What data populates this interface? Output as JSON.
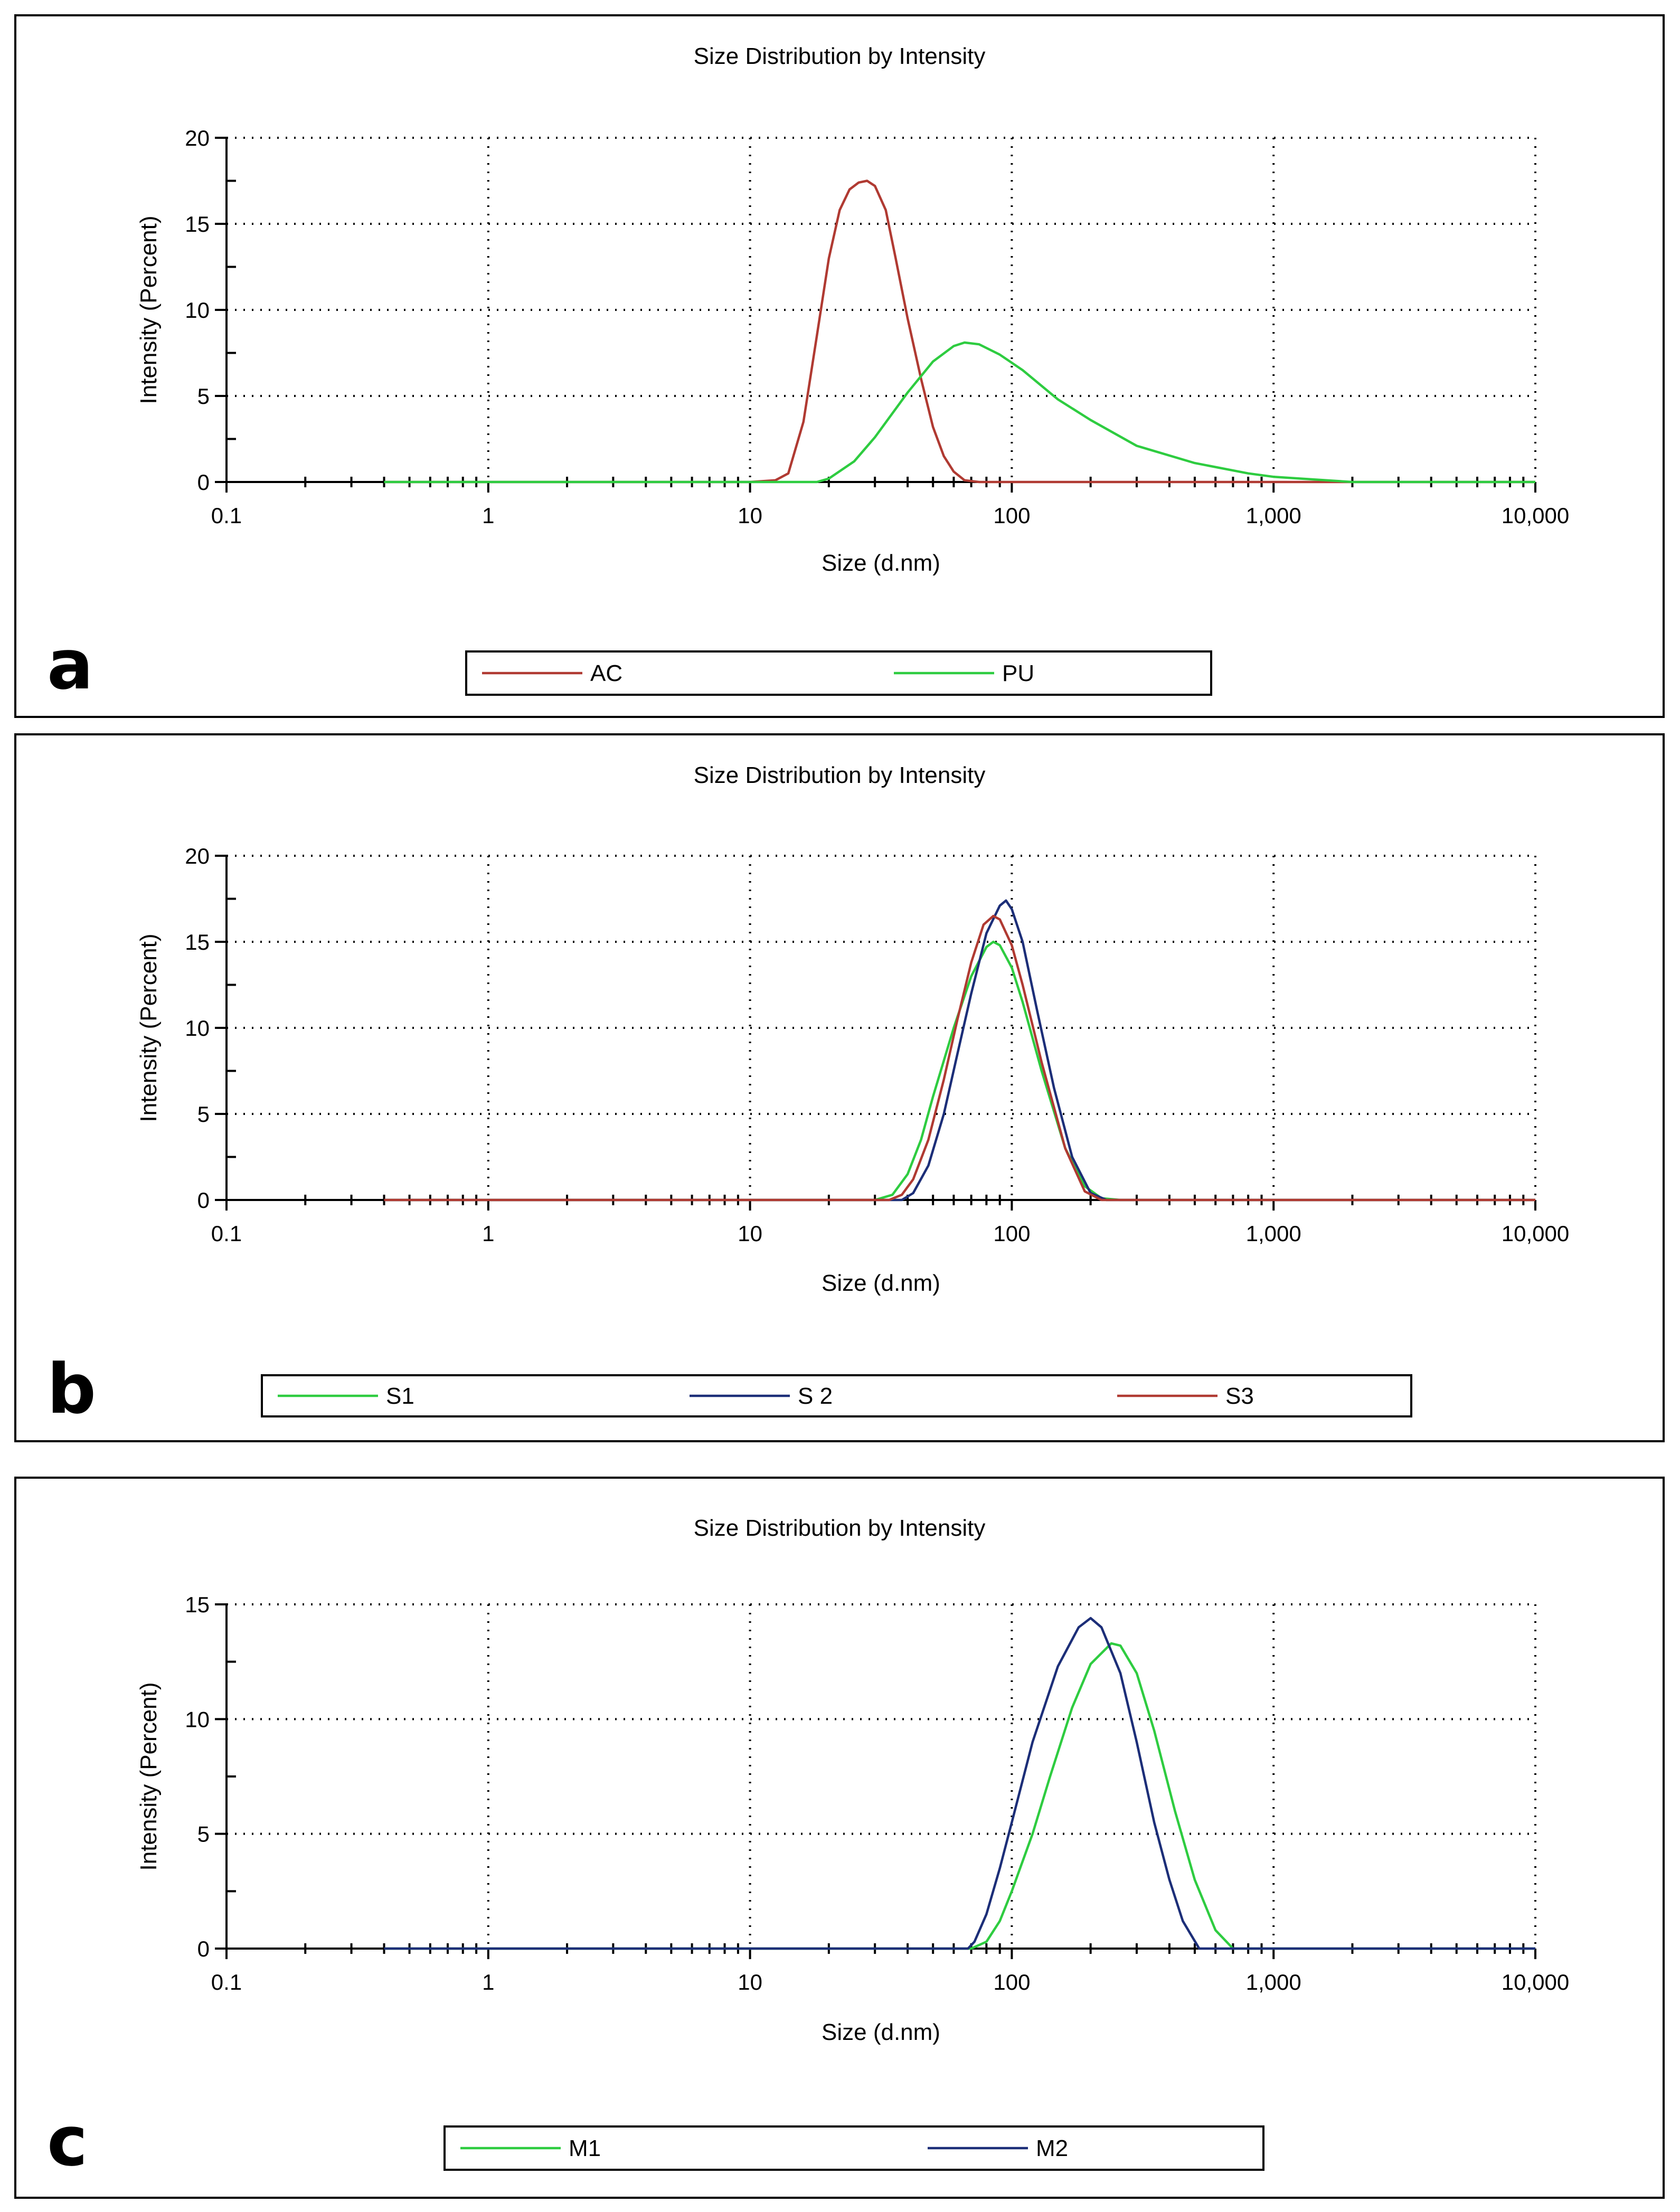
{
  "chart_data": [
    {
      "type": "line",
      "panel_label": "a",
      "title": "Size Distribution by Intensity",
      "xlabel": "Size (d.nm)",
      "ylabel": "Intensity (Percent)",
      "xscale": "log",
      "xlim": [
        0.1,
        10000
      ],
      "ylim": [
        0,
        20
      ],
      "xticks": [
        0.1,
        1,
        10,
        100,
        1000,
        10000
      ],
      "xtick_labels": [
        "0.1",
        "1",
        "10",
        "100",
        "1,000",
        "10,000"
      ],
      "yticks": [
        0,
        5,
        10,
        15,
        20
      ],
      "ytick_labels": [
        "0",
        "5",
        "10",
        "15",
        "20"
      ],
      "grid": true,
      "legend_position": "bottom",
      "series": [
        {
          "name": "AC",
          "color": "#b03a32",
          "x": [
            0.4,
            10,
            12.5,
            14,
            16,
            18,
            20,
            22,
            24,
            26,
            28,
            30,
            33,
            36,
            40,
            45,
            50,
            55,
            60,
            66,
            75,
            100,
            1000,
            10000
          ],
          "y": [
            0,
            0,
            0.1,
            0.5,
            3.5,
            8.5,
            13.0,
            15.8,
            17.0,
            17.4,
            17.5,
            17.2,
            15.8,
            13.0,
            9.5,
            6.0,
            3.2,
            1.5,
            0.6,
            0.1,
            0,
            0,
            0,
            0
          ]
        },
        {
          "name": "PU",
          "color": "#2ecc40",
          "x": [
            0.4,
            10,
            18,
            20,
            25,
            30,
            40,
            50,
            60,
            66,
            75,
            90,
            110,
            150,
            200,
            300,
            500,
            800,
            1000,
            2000,
            10000
          ],
          "y": [
            0,
            0,
            0,
            0.2,
            1.2,
            2.6,
            5.2,
            7.0,
            7.9,
            8.1,
            8.0,
            7.4,
            6.5,
            4.8,
            3.6,
            2.1,
            1.1,
            0.5,
            0.3,
            0,
            0
          ]
        }
      ]
    },
    {
      "type": "line",
      "panel_label": "b",
      "title": "Size Distribution by Intensity",
      "xlabel": "Size (d.nm)",
      "ylabel": "Intensity (Percent)",
      "xscale": "log",
      "xlim": [
        0.1,
        10000
      ],
      "ylim": [
        0,
        20
      ],
      "xticks": [
        0.1,
        1,
        10,
        100,
        1000,
        10000
      ],
      "xtick_labels": [
        "0.1",
        "1",
        "10",
        "100",
        "1,000",
        "10,000"
      ],
      "yticks": [
        0,
        5,
        10,
        15,
        20
      ],
      "ytick_labels": [
        "0",
        "5",
        "10",
        "15",
        "20"
      ],
      "grid": true,
      "legend_position": "bottom",
      "series": [
        {
          "name": "S1",
          "color": "#2ecc40",
          "x": [
            0.4,
            30,
            35,
            40,
            45,
            50,
            60,
            70,
            80,
            85,
            90,
            100,
            110,
            130,
            160,
            190,
            220,
            260,
            10000
          ],
          "y": [
            0,
            0,
            0.3,
            1.5,
            3.5,
            6.0,
            10.0,
            13.0,
            14.7,
            15.0,
            14.8,
            13.5,
            11.5,
            7.5,
            3.0,
            0.8,
            0.1,
            0,
            0
          ]
        },
        {
          "name": "S 2",
          "color": "#1c2e78",
          "x": [
            0.4,
            38,
            42,
            48,
            55,
            62,
            70,
            80,
            90,
            95,
            100,
            110,
            125,
            145,
            170,
            200,
            230,
            10000
          ],
          "y": [
            0,
            0,
            0.4,
            2.0,
            5.0,
            8.5,
            12.0,
            15.5,
            17.1,
            17.4,
            16.9,
            15.0,
            11.0,
            6.5,
            2.5,
            0.4,
            0,
            0
          ]
        },
        {
          "name": "S3",
          "color": "#b03a32",
          "x": [
            0.4,
            34,
            38,
            42,
            48,
            55,
            62,
            70,
            78,
            85,
            90,
            100,
            110,
            130,
            160,
            190,
            220,
            10000
          ],
          "y": [
            0,
            0,
            0.3,
            1.2,
            3.5,
            7.0,
            10.5,
            13.8,
            16.0,
            16.5,
            16.3,
            14.8,
            12.5,
            8.0,
            3.0,
            0.5,
            0,
            0
          ]
        }
      ]
    },
    {
      "type": "line",
      "panel_label": "c",
      "title": "Size Distribution by Intensity",
      "xlabel": "Size (d.nm)",
      "ylabel": "Intensity (Percent)",
      "xscale": "log",
      "xlim": [
        0.1,
        10000
      ],
      "ylim": [
        0,
        15
      ],
      "xticks": [
        0.1,
        1,
        10,
        100,
        1000,
        10000
      ],
      "xtick_labels": [
        "0.1",
        "1",
        "10",
        "100",
        "1,000",
        "10,000"
      ],
      "yticks": [
        0,
        5,
        10,
        15
      ],
      "ytick_labels": [
        "0",
        "5",
        "10",
        "15"
      ],
      "grid": true,
      "legend_position": "bottom",
      "series": [
        {
          "name": "M1",
          "color": "#2ecc40",
          "x": [
            0.4,
            70,
            80,
            90,
            100,
            120,
            140,
            170,
            200,
            240,
            260,
            300,
            350,
            420,
            500,
            600,
            700,
            10000
          ],
          "y": [
            0,
            0,
            0.3,
            1.2,
            2.5,
            5.0,
            7.5,
            10.5,
            12.4,
            13.3,
            13.2,
            12.0,
            9.5,
            6.0,
            3.0,
            0.8,
            0,
            0
          ]
        },
        {
          "name": "M2",
          "color": "#1c2e78",
          "x": [
            0.4,
            68,
            72,
            80,
            90,
            100,
            120,
            150,
            180,
            200,
            220,
            260,
            300,
            350,
            400,
            450,
            520,
            10000
          ],
          "y": [
            0,
            0,
            0.3,
            1.5,
            3.5,
            5.5,
            9.0,
            12.3,
            14.0,
            14.4,
            14.0,
            12.0,
            9.0,
            5.5,
            3.0,
            1.2,
            0,
            0
          ]
        }
      ]
    }
  ]
}
